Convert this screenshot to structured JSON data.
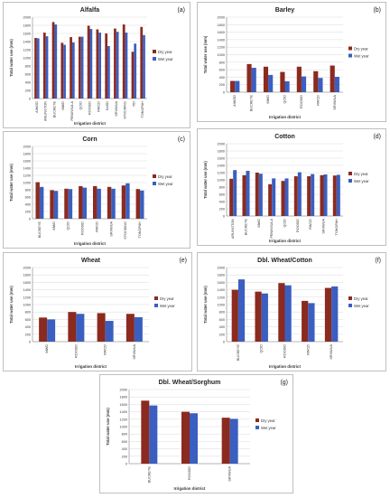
{
  "legend": {
    "dry": "Dry year",
    "wet": "Wet year"
  },
  "colors": {
    "dry": "#8b2a1f",
    "wet": "#3b5fc0",
    "axis": "#808080",
    "grid": "#d9d9d9",
    "frame": "#bfbfbf"
  },
  "chart_data": [
    {
      "type": "bar",
      "panel_label": "(a)",
      "title": "Alfalfa",
      "xlabel": "Irrigation district",
      "ylabel": "Total water use (mm)",
      "ylim": [
        0,
        2000
      ],
      "yticks": [
        0,
        200,
        400,
        600,
        800,
        1000,
        1200,
        1400,
        1600,
        1800,
        2000
      ],
      "categories": [
        "AIWOD",
        "ARLINGTON",
        "BUCKEYE",
        "MWD",
        "PENINSULA",
        "QCID",
        "ROOSID",
        "RWCD",
        "SASD",
        "SRVWUA",
        "STOCKING",
        "TID",
        "TONOPAH"
      ],
      "series": [
        {
          "name": "Dry year",
          "values": [
            1490,
            1620,
            1880,
            1370,
            1510,
            1520,
            1790,
            1700,
            1600,
            1720,
            1820,
            1150,
            1760
          ]
        },
        {
          "name": "Wet year",
          "values": [
            1480,
            1530,
            1820,
            1320,
            1380,
            1520,
            1710,
            1620,
            1290,
            1640,
            1620,
            1350,
            1560
          ]
        }
      ]
    },
    {
      "type": "bar",
      "panel_label": "(b)",
      "title": "Barley",
      "xlabel": "Irrigation district",
      "ylabel": "Total water use (mm)",
      "ylim": [
        0,
        2000
      ],
      "yticks": [
        0,
        200,
        400,
        600,
        800,
        1000,
        1200,
        1400,
        1600,
        1800,
        2000
      ],
      "categories": [
        "AIWOD",
        "BUCKEYE",
        "MWD",
        "QCID",
        "ROOSID",
        "RWCD",
        "SRVWUA"
      ],
      "series": [
        {
          "name": "Dry year",
          "values": [
            300,
            750,
            680,
            540,
            680,
            560,
            710
          ]
        },
        {
          "name": "Wet year",
          "values": [
            300,
            650,
            460,
            290,
            420,
            380,
            410
          ]
        }
      ]
    },
    {
      "type": "bar",
      "panel_label": "(c)",
      "title": "Corn",
      "xlabel": "Irrigation district",
      "ylabel": "Total water use (mm)",
      "ylim": [
        0,
        2000
      ],
      "yticks": [
        0,
        200,
        400,
        600,
        800,
        1000,
        1200,
        1400,
        1600,
        1800,
        2000
      ],
      "categories": [
        "BUCKEYE",
        "MWD",
        "QCID",
        "ROOSID",
        "RWCD",
        "SRVWUA",
        "STOCKING",
        "TONOPAH"
      ],
      "series": [
        {
          "name": "Dry year",
          "values": [
            1010,
            790,
            830,
            900,
            900,
            880,
            920,
            820
          ]
        },
        {
          "name": "Wet year",
          "values": [
            880,
            770,
            820,
            860,
            830,
            830,
            980,
            780
          ]
        }
      ]
    },
    {
      "type": "bar",
      "panel_label": "(d)",
      "title": "Cotton",
      "xlabel": "Irrigation district",
      "ylabel": "Total water use (mm)",
      "ylim": [
        0,
        2000
      ],
      "yticks": [
        0,
        200,
        400,
        600,
        800,
        1000,
        1200,
        1400,
        1600,
        1800,
        2000
      ],
      "categories": [
        "ARLINGTON",
        "BUCKEYE",
        "MWD",
        "PENINSULA",
        "QCID",
        "ROOSID",
        "RWCD",
        "SRVWUA",
        "TONOPAH"
      ],
      "series": [
        {
          "name": "Dry year",
          "values": [
            1030,
            1130,
            1200,
            880,
            970,
            1100,
            1100,
            1130,
            1120
          ]
        },
        {
          "name": "Wet year",
          "values": [
            1270,
            1250,
            1170,
            1040,
            1040,
            1210,
            1160,
            1150,
            1140
          ]
        }
      ]
    },
    {
      "type": "bar",
      "panel_label": "(e)",
      "title": "Wheat",
      "xlabel": "Irrigation district",
      "ylabel": "Total water use (mm)",
      "ylim": [
        0,
        2000
      ],
      "yticks": [
        0,
        200,
        400,
        600,
        800,
        1000,
        1200,
        1400,
        1600,
        1800,
        2000
      ],
      "categories": [
        "MWD",
        "ROOSID",
        "RWCD",
        "SRVWUA"
      ],
      "series": [
        {
          "name": "Dry year",
          "values": [
            650,
            800,
            770,
            750
          ]
        },
        {
          "name": "Wet year",
          "values": [
            600,
            750,
            560,
            660
          ]
        }
      ]
    },
    {
      "type": "bar",
      "panel_label": "(f)",
      "title": "Dbl. Wheat/Cotton",
      "xlabel": "Irrigation district",
      "ylabel": "Total water use (mm)",
      "ylim": [
        0,
        2000
      ],
      "yticks": [
        0,
        200,
        400,
        600,
        800,
        1000,
        1200,
        1400,
        1600,
        1800,
        2000
      ],
      "categories": [
        "BUCKEYE",
        "QCID",
        "ROOSID",
        "RWCD",
        "SRVWUA"
      ],
      "series": [
        {
          "name": "Dry year",
          "values": [
            1400,
            1350,
            1580,
            1100,
            1450
          ]
        },
        {
          "name": "Wet year",
          "values": [
            1680,
            1300,
            1520,
            1040,
            1490
          ]
        }
      ]
    },
    {
      "type": "bar",
      "panel_label": "(g)",
      "title": "Dbl. Wheat/Sorghum",
      "xlabel": "Irrigation district",
      "ylabel": "Total water use (mm)",
      "ylim": [
        0,
        2000
      ],
      "yticks": [
        0,
        200,
        400,
        600,
        800,
        1000,
        1200,
        1400,
        1600,
        1800,
        2000
      ],
      "categories": [
        "BUCKEYE",
        "ROOSID",
        "SRVWUA"
      ],
      "series": [
        {
          "name": "Dry year",
          "values": [
            1700,
            1400,
            1240
          ]
        },
        {
          "name": "Wet year",
          "values": [
            1570,
            1360,
            1210
          ]
        }
      ]
    }
  ]
}
